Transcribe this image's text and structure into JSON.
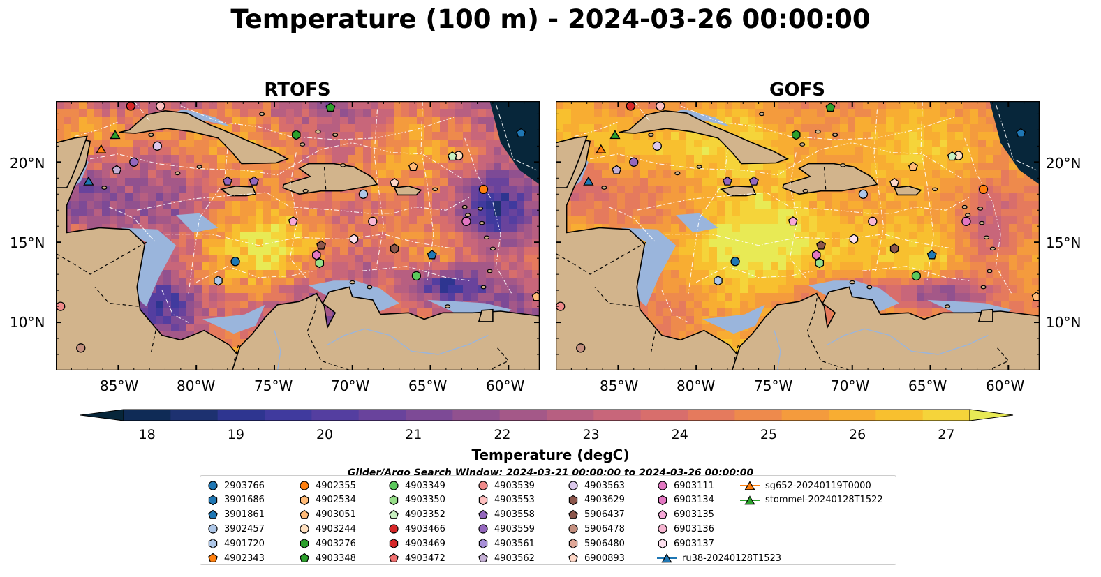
{
  "title": "Temperature (100 m) - 2024-03-26 00:00:00",
  "panels": [
    {
      "title": "RTOFS",
      "palette": "rtofs"
    },
    {
      "title": "GOFS",
      "palette": "gofs"
    }
  ],
  "map": {
    "lon_ticks": [
      "85°W",
      "80°W",
      "75°W",
      "70°W",
      "65°W",
      "60°W"
    ],
    "lat_ticks": [
      "20°N",
      "15°N",
      "10°N"
    ],
    "extent": {
      "lon": [
        -89,
        -58
      ],
      "lat": [
        7,
        23.8
      ]
    },
    "land_color": "#d2b48c",
    "shelf_color": "#9ab5dc",
    "abyss_color": "#07263a"
  },
  "colorbar": {
    "label": "Temperature (degC)",
    "min": 18,
    "max": 27,
    "ticks": [
      "18",
      "19",
      "20",
      "21",
      "22",
      "23",
      "24",
      "25",
      "26",
      "27"
    ],
    "colors": [
      "#07263a",
      "#0f2b56",
      "#1d3170",
      "#2e3590",
      "#403a9e",
      "#543ea0",
      "#69439c",
      "#7d4a96",
      "#91518f",
      "#a45888",
      "#b75f81",
      "#c8667a",
      "#d86e6c",
      "#e57a5d",
      "#ee8a4c",
      "#f49b3d",
      "#f8ad32",
      "#f8c02f",
      "#f5d43a",
      "#e8ea55"
    ]
  },
  "search_window": "Glider/Argo Search Window: 2024-03-21 00:00:00 to 2024-03-26 00:00:00",
  "legend": [
    {
      "label": "2903766",
      "shape": "circle",
      "color": "#1f77b4"
    },
    {
      "label": "3901686",
      "shape": "hexagon",
      "color": "#1f77b4"
    },
    {
      "label": "3901861",
      "shape": "pentagon",
      "color": "#1f77b4"
    },
    {
      "label": "3902457",
      "shape": "circle",
      "color": "#aec7e8"
    },
    {
      "label": "4901720",
      "shape": "hexagon",
      "color": "#aec7e8"
    },
    {
      "label": "4902343",
      "shape": "pentagon",
      "color": "#ff7f0e"
    },
    {
      "label": "4902355",
      "shape": "circle",
      "color": "#ff7f0e"
    },
    {
      "label": "4902534",
      "shape": "hexagon",
      "color": "#ffbb78"
    },
    {
      "label": "4903051",
      "shape": "pentagon",
      "color": "#ffbb78"
    },
    {
      "label": "4903244",
      "shape": "circle",
      "color": "#ffe0c0"
    },
    {
      "label": "4903276",
      "shape": "hexagon",
      "color": "#2ca02c"
    },
    {
      "label": "4903348",
      "shape": "pentagon",
      "color": "#2ca02c"
    },
    {
      "label": "4903349",
      "shape": "circle",
      "color": "#5cc95c"
    },
    {
      "label": "4903350",
      "shape": "hexagon",
      "color": "#98df8a"
    },
    {
      "label": "4903352",
      "shape": "pentagon",
      "color": "#c8f0c0"
    },
    {
      "label": "4903466",
      "shape": "circle",
      "color": "#d62728"
    },
    {
      "label": "4903469",
      "shape": "hexagon",
      "color": "#d62728"
    },
    {
      "label": "4903472",
      "shape": "pentagon",
      "color": "#f07070"
    },
    {
      "label": "4903539",
      "shape": "circle",
      "color": "#f08a8a"
    },
    {
      "label": "4903553",
      "shape": "hexagon",
      "color": "#ffc0c0"
    },
    {
      "label": "4903558",
      "shape": "pentagon",
      "color": "#9467bd"
    },
    {
      "label": "4903559",
      "shape": "circle",
      "color": "#9467bd"
    },
    {
      "label": "4903561",
      "shape": "hexagon",
      "color": "#a890d8"
    },
    {
      "label": "4903562",
      "shape": "pentagon",
      "color": "#c5b0d5"
    },
    {
      "label": "4903563",
      "shape": "circle",
      "color": "#dcc8ec"
    },
    {
      "label": "4903629",
      "shape": "hexagon",
      "color": "#8c564b"
    },
    {
      "label": "5906437",
      "shape": "pentagon",
      "color": "#8c564b"
    },
    {
      "label": "5906478",
      "shape": "circle",
      "color": "#c49080"
    },
    {
      "label": "5906480",
      "shape": "hexagon",
      "color": "#e0a898"
    },
    {
      "label": "6900893",
      "shape": "pentagon",
      "color": "#ffd8c8"
    },
    {
      "label": "6903111",
      "shape": "circle",
      "color": "#e377c2"
    },
    {
      "label": "6903134",
      "shape": "hexagon",
      "color": "#e377c2"
    },
    {
      "label": "6903135",
      "shape": "pentagon",
      "color": "#f7a8d8"
    },
    {
      "label": "6903136",
      "shape": "circle",
      "color": "#f7b6d2"
    },
    {
      "label": "6903137",
      "shape": "hexagon",
      "color": "#fde0ee"
    },
    {
      "label": "ru38-20240128T1523",
      "shape": "triangle-line",
      "color": "#1f77b4"
    },
    {
      "label": "sg652-20240119T0000",
      "shape": "triangle-line",
      "color": "#ff7f0e"
    },
    {
      "label": "stommel-20240128T1522",
      "shape": "triangle-line",
      "color": "#2ca02c"
    }
  ],
  "floats": [
    {
      "lon": -84.2,
      "lat": 23.5,
      "shape": "circle",
      "color": "#d62728"
    },
    {
      "lon": -82.3,
      "lat": 23.5,
      "shape": "circle",
      "color": "#ffc0c0"
    },
    {
      "lon": -71.4,
      "lat": 23.4,
      "shape": "pentagon",
      "color": "#2ca02c"
    },
    {
      "lon": -73.6,
      "lat": 21.7,
      "shape": "hexagon",
      "color": "#2ca02c"
    },
    {
      "lon": -82.5,
      "lat": 21.0,
      "shape": "circle",
      "color": "#dcc8ec"
    },
    {
      "lon": -84.0,
      "lat": 20.0,
      "shape": "circle",
      "color": "#9467bd"
    },
    {
      "lon": -85.1,
      "lat": 19.5,
      "shape": "pentagon",
      "color": "#c5b0d5"
    },
    {
      "lon": -78.0,
      "lat": 18.8,
      "shape": "pentagon",
      "color": "#9467bd"
    },
    {
      "lon": -76.3,
      "lat": 18.8,
      "shape": "pentagon",
      "color": "#9467bd"
    },
    {
      "lon": -59.2,
      "lat": 21.8,
      "shape": "pentagon",
      "color": "#1f77b4"
    },
    {
      "lon": -63.2,
      "lat": 20.4,
      "shape": "circle",
      "color": "#ffe0c0"
    },
    {
      "lon": -63.6,
      "lat": 20.35,
      "shape": "pentagon",
      "color": "#c8f0c0"
    },
    {
      "lon": -66.1,
      "lat": 19.7,
      "shape": "pentagon",
      "color": "#ffbb78"
    },
    {
      "lon": -67.3,
      "lat": 18.7,
      "shape": "pentagon",
      "color": "#ffd8c8"
    },
    {
      "lon": -69.3,
      "lat": 18.0,
      "shape": "circle",
      "color": "#aec7e8"
    },
    {
      "lon": -61.6,
      "lat": 18.3,
      "shape": "circle",
      "color": "#ff7f0e"
    },
    {
      "lon": -73.8,
      "lat": 16.3,
      "shape": "pentagon",
      "color": "#f7a8d8"
    },
    {
      "lon": -68.7,
      "lat": 16.3,
      "shape": "circle",
      "color": "#f7b6d2"
    },
    {
      "lon": -62.7,
      "lat": 16.3,
      "shape": "circle",
      "color": "#e377c2"
    },
    {
      "lon": -69.9,
      "lat": 15.2,
      "shape": "hexagon",
      "color": "#fde0ee"
    },
    {
      "lon": -72.0,
      "lat": 14.8,
      "shape": "pentagon",
      "color": "#8c564b"
    },
    {
      "lon": -67.3,
      "lat": 14.6,
      "shape": "hexagon",
      "color": "#8c564b"
    },
    {
      "lon": -72.3,
      "lat": 14.2,
      "shape": "hexagon",
      "color": "#e377c2"
    },
    {
      "lon": -72.1,
      "lat": 13.7,
      "shape": "hexagon",
      "color": "#98df8a"
    },
    {
      "lon": -64.9,
      "lat": 14.2,
      "shape": "pentagon",
      "color": "#1f77b4"
    },
    {
      "lon": -77.5,
      "lat": 13.8,
      "shape": "circle",
      "color": "#1f77b4"
    },
    {
      "lon": -65.9,
      "lat": 12.9,
      "shape": "circle",
      "color": "#5cc95c"
    },
    {
      "lon": -78.6,
      "lat": 12.6,
      "shape": "hexagon",
      "color": "#aec7e8"
    },
    {
      "lon": -58.2,
      "lat": 11.6,
      "shape": "pentagon",
      "color": "#ffbb78"
    },
    {
      "lon": -88.7,
      "lat": 11.0,
      "shape": "circle",
      "color": "#f08a8a"
    },
    {
      "lon": -87.4,
      "lat": 8.4,
      "shape": "circle",
      "color": "#c49080"
    },
    {
      "lon": -85.2,
      "lat": 21.7,
      "shape": "triangle",
      "color": "#2ca02c"
    },
    {
      "lon": -86.1,
      "lat": 20.8,
      "shape": "triangle",
      "color": "#ff7f0e"
    },
    {
      "lon": -86.9,
      "lat": 18.8,
      "shape": "triangle",
      "color": "#1f77b4"
    }
  ]
}
